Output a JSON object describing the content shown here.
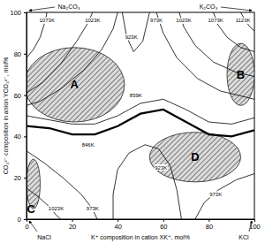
{
  "chart_data": {
    "type": "contour",
    "x_label": "K⁺ composition in cation XK⁺, mol%",
    "y_label": "CO₃²⁻ composition in anion YCO₃²⁻, mol%",
    "xlim": [
      0,
      100
    ],
    "ylim": [
      0,
      100
    ],
    "xticks": [
      0,
      20,
      40,
      60,
      80,
      100
    ],
    "yticks": [
      0,
      20,
      40,
      60,
      80,
      100
    ],
    "corners": [
      {
        "label": "Na₂CO₃",
        "x": 0,
        "y": 100
      },
      {
        "label": "K₂CO₃",
        "x": 100,
        "y": 100
      },
      {
        "label": "NaCl",
        "x": 0,
        "y": 0
      },
      {
        "label": "KCl",
        "x": 100,
        "y": 0
      }
    ],
    "contours": [
      {
        "label": "1073K",
        "x": [
          9,
          8,
          6,
          3,
          0
        ],
        "y": [
          100,
          95,
          88,
          82,
          78
        ],
        "label_x": 9,
        "label_y": 96
      },
      {
        "label": "1023K",
        "x": [
          29,
          27,
          22,
          15,
          7,
          0
        ],
        "y": [
          100,
          95,
          86,
          75,
          66,
          61
        ],
        "label_x": 29,
        "label_y": 96
      },
      {
        "label": "973K",
        "x": [
          0,
          6,
          15,
          25,
          33,
          38,
          40,
          null,
          57,
          60,
          66,
          75,
          85,
          100
        ],
        "y": [
          55,
          57,
          63,
          72,
          82,
          92,
          100,
          null,
          100,
          90,
          78,
          68,
          62,
          58
        ],
        "label_x": 57,
        "label_y": 96
      },
      {
        "label": "923K",
        "x": [
          42,
          44,
          47,
          51,
          54
        ],
        "y": [
          100,
          88,
          81,
          86,
          100
        ],
        "label_x": 46,
        "label_y": 88
      },
      {
        "label": "1023K",
        "x": [
          67,
          69,
          74,
          82,
          92,
          100
        ],
        "y": [
          100,
          93,
          84,
          76,
          71,
          69
        ],
        "label_x": 69,
        "label_y": 96
      },
      {
        "label": "1073K",
        "x": [
          82,
          84,
          88,
          94,
          100
        ],
        "y": [
          100,
          94,
          88,
          83,
          81
        ],
        "label_x": 83,
        "label_y": 96
      },
      {
        "label": "1123K",
        "x": [
          94,
          96,
          98,
          100
        ],
        "y": [
          100,
          96,
          93,
          91
        ],
        "label_x": 95,
        "label_y": 96
      },
      {
        "label": "859K",
        "x": [
          0,
          10,
          20,
          30,
          40,
          50,
          60,
          70,
          80,
          90,
          100
        ],
        "y": [
          50,
          48,
          46,
          46,
          50,
          56,
          58,
          53,
          47,
          46,
          49
        ],
        "label_x": 48,
        "label_y": 60
      },
      {
        "label": "846K",
        "x": [
          0,
          10,
          20,
          30,
          40,
          50,
          60,
          70,
          80,
          90,
          100
        ],
        "y": [
          45,
          44,
          41,
          41,
          45,
          51,
          53,
          47,
          41,
          40,
          43
        ],
        "label_x": 27,
        "label_y": 36,
        "line_style": "thick"
      },
      {
        "label": "1023K",
        "x": [
          0,
          5,
          10,
          13,
          15
        ],
        "y": [
          15,
          11,
          6,
          2,
          0
        ],
        "label_x": 13,
        "label_y": 5
      },
      {
        "label": "973K",
        "x": [
          0,
          8,
          16,
          24,
          29,
          31
        ],
        "y": [
          33,
          27,
          20,
          12,
          5,
          0
        ],
        "label_x": 29,
        "label_y": 5
      },
      {
        "label": "923K",
        "x": [
          38,
          38,
          40,
          45,
          52,
          58,
          63,
          66,
          68
        ],
        "y": [
          0,
          12,
          24,
          32,
          36,
          34,
          26,
          14,
          0
        ],
        "label_x": 59,
        "label_y": 25
      },
      {
        "label": "973K",
        "x": [
          74,
          78,
          84,
          92,
          100
        ],
        "y": [
          0,
          8,
          14,
          19,
          22
        ],
        "label_x": 83,
        "label_y": 12
      }
    ],
    "regions": [
      {
        "label": "A",
        "x": 21,
        "y": 65,
        "rx": 22,
        "ry": 18
      },
      {
        "label": "B",
        "x": 94,
        "y": 70,
        "rx": 6,
        "ry": 15
      },
      {
        "label": "C",
        "x": 3,
        "y": 17,
        "rx": 3,
        "ry": 12,
        "label_x": 2,
        "label_y": 5
      },
      {
        "label": "D",
        "x": 74,
        "y": 30,
        "rx": 20,
        "ry": 12
      }
    ]
  }
}
